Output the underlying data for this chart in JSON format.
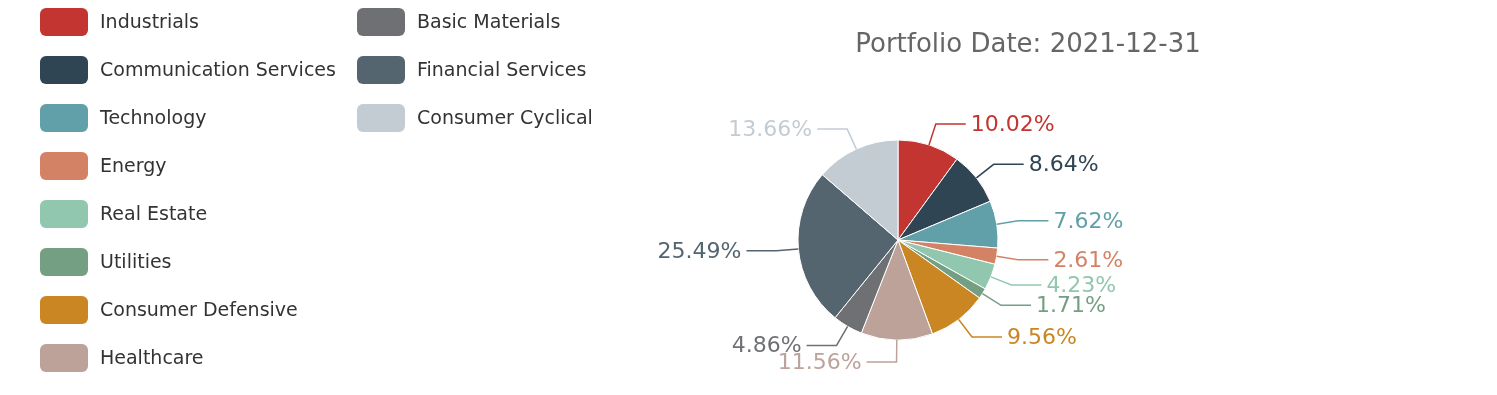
{
  "chart_data": {
    "type": "pie",
    "title": "Portfolio Date: 2021-12-31",
    "categories": [
      "Industrials",
      "Communication Services",
      "Technology",
      "Energy",
      "Real Estate",
      "Utilities",
      "Consumer Defensive",
      "Healthcare",
      "Basic Materials",
      "Financial Services",
      "Consumer Cyclical"
    ],
    "values": [
      10.02,
      8.64,
      7.62,
      2.61,
      4.23,
      1.71,
      9.56,
      11.56,
      4.86,
      25.49,
      13.66
    ],
    "value_labels": [
      "10.02%",
      "8.64%",
      "7.62%",
      "2.61%",
      "4.23%",
      "1.71%",
      "9.56%",
      "11.56%",
      "4.86%",
      "25.49%",
      "13.66%"
    ],
    "colors": [
      "#c23531",
      "#2f4554",
      "#61a0a8",
      "#d48265",
      "#91c7ae",
      "#749f83",
      "#ca8622",
      "#bda29a",
      "#6e7074",
      "#546570",
      "#c4ccd3"
    ],
    "legend": "left"
  }
}
